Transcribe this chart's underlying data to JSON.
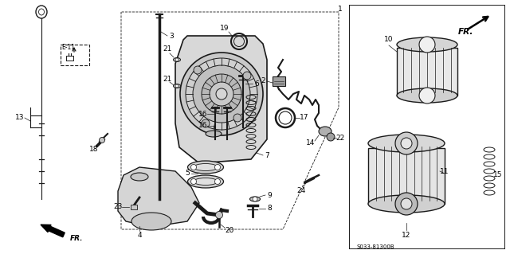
{
  "bg_color": "#ffffff",
  "diagram_code": "S033-81300B",
  "fr_label": "FR.",
  "e11_label": "E-11",
  "part_ids": [
    "1",
    "2",
    "3",
    "4",
    "5",
    "6",
    "7",
    "8",
    "9",
    "10",
    "11",
    "12",
    "13",
    "14",
    "15",
    "16",
    "17",
    "18",
    "19",
    "20",
    "21",
    "22",
    "23",
    "24"
  ],
  "line_color": "#1a1a1a",
  "light_gray": "#c8c8c8",
  "mid_gray": "#888888",
  "dark_gray": "#333333"
}
